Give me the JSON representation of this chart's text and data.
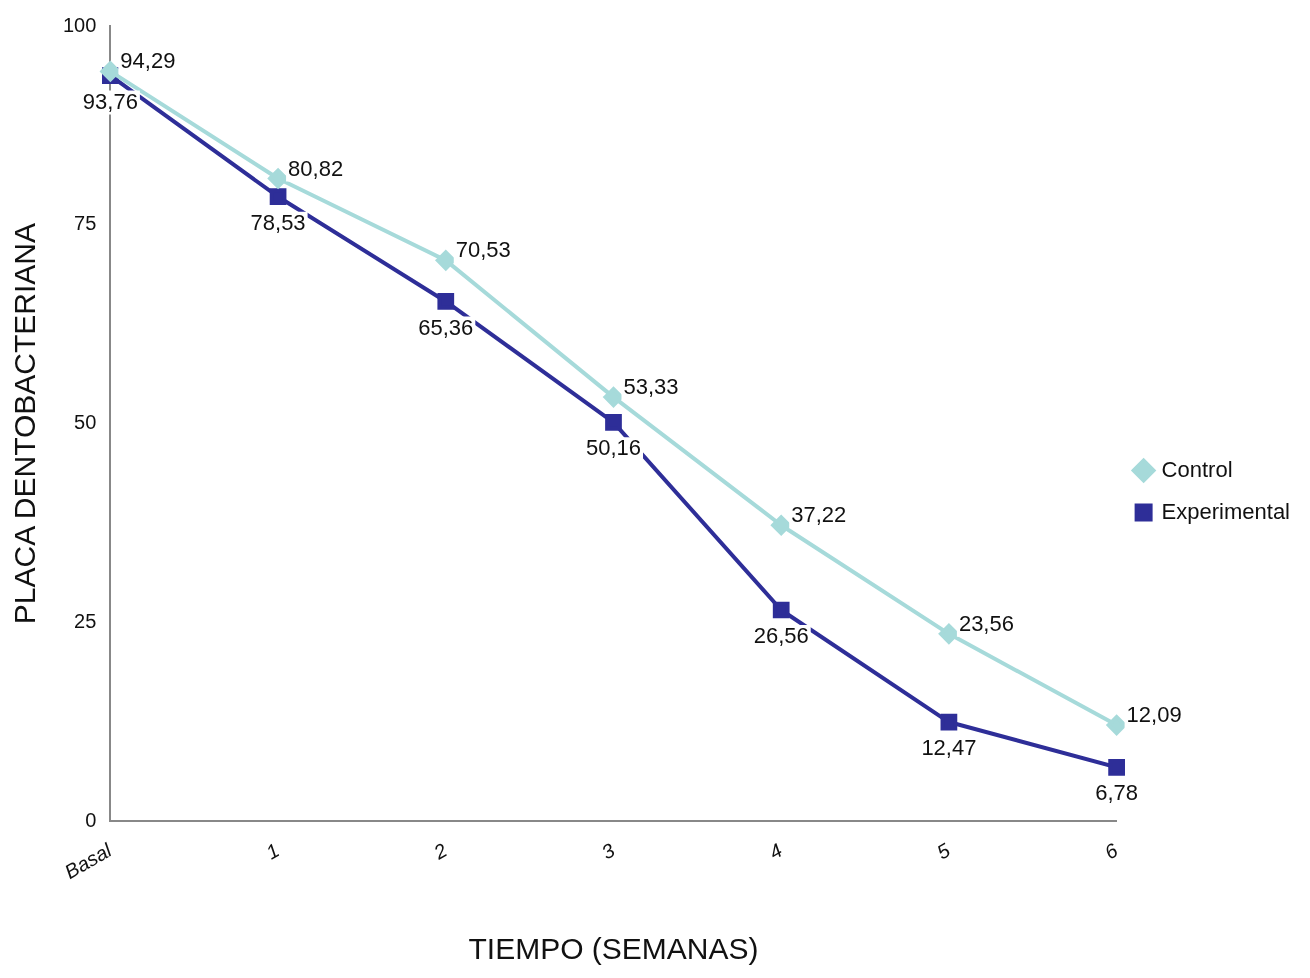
{
  "chart_data": {
    "type": "line",
    "xlabel": "TIEMPO (SEMANAS)",
    "ylabel": "PLACA DENTOBACTERIANA",
    "categories": [
      "Basal",
      "1",
      "2",
      "3",
      "4",
      "5",
      "6"
    ],
    "series": [
      {
        "name": "Control",
        "color": "#a6dada",
        "marker": "diamond",
        "values": [
          94.29,
          80.82,
          70.53,
          53.33,
          37.22,
          23.56,
          12.09
        ],
        "value_labels": [
          "94,29",
          "80,82",
          "70,53",
          "53,33",
          "37,22",
          "23,56",
          "12,09"
        ]
      },
      {
        "name": "Experimental",
        "color": "#2e2e98",
        "marker": "square",
        "values": [
          93.76,
          78.53,
          65.36,
          50.16,
          26.56,
          12.47,
          6.78
        ],
        "value_labels": [
          "93,76",
          "78,53",
          "65,36",
          "50,16",
          "26,56",
          "12,47",
          "6,78"
        ]
      }
    ],
    "ylim": [
      0,
      100
    ],
    "yticks": [
      0,
      25,
      50,
      75,
      100
    ],
    "grid": false,
    "legend": "right",
    "line_style": "solid"
  }
}
